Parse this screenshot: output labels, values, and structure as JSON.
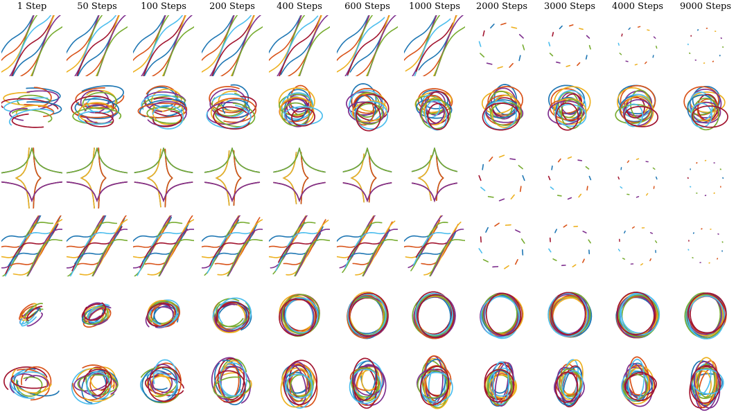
{
  "columns": [
    "1 Step",
    "50 Steps",
    "100 Steps",
    "200 Steps",
    "400 Steps",
    "600 Steps",
    "1000 Steps",
    "2000 Steps",
    "3000 Steps",
    "4000 Steps",
    "9000 Steps"
  ],
  "row_count": 6,
  "palette": [
    "#1f77b4",
    "#d95319",
    "#edb120",
    "#7e2f8e",
    "#77ac30",
    "#4dbeee",
    "#a2142f"
  ]
}
